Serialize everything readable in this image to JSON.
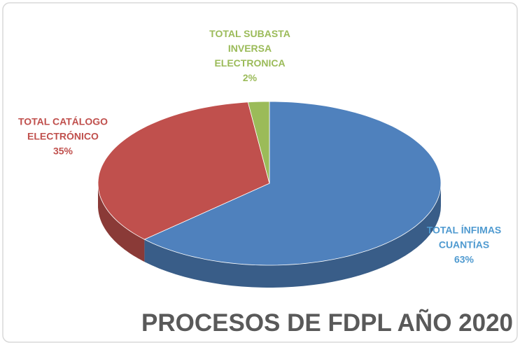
{
  "chart_data": {
    "type": "pie",
    "title": "PROCESOS DE FDPL AÑO 2020",
    "categories": [
      "TOTAL ÍNFIMAS CUANTÍAS",
      "TOTAL CATÁLOGO ELECTRÓNICO",
      "TOTAL SUBASTA INVERSA ELECTRONICA"
    ],
    "values": [
      63,
      35,
      2
    ],
    "value_labels": [
      "63%",
      "35%",
      "2%"
    ],
    "colors": [
      "#4f81bd",
      "#c0504d",
      "#9bbb59"
    ]
  }
}
